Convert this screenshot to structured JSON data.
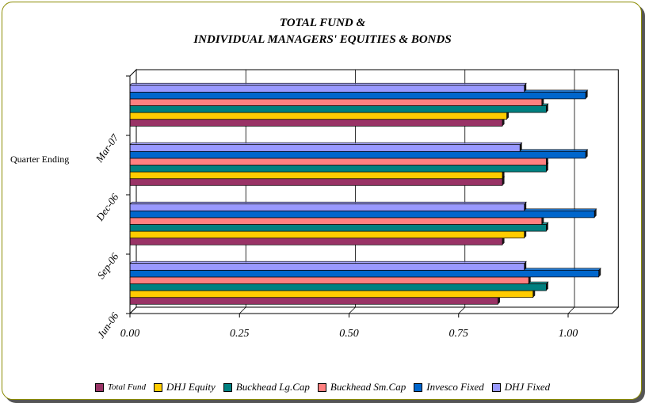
{
  "chart_data": {
    "type": "bar",
    "orientation": "horizontal",
    "title_line1": "TOTAL FUND &",
    "title_line2": "INDIVIDUAL MANAGERS' EQUITIES & BONDS",
    "ylabel": "Quarter Ending",
    "xlabel": "",
    "categories": [
      "Jun-06",
      "Sep-06",
      "Dec-06",
      "Mar-07"
    ],
    "x_ticks": [
      "0.00",
      "0.25",
      "0.50",
      "0.75",
      "1.00"
    ],
    "xlim": [
      0,
      1.1
    ],
    "grid": true,
    "legend_position": "bottom",
    "series": [
      {
        "name": "Total Fund",
        "color": "#993366",
        "values": [
          0.84,
          0.85,
          0.85,
          0.85
        ]
      },
      {
        "name": "DHJ Equity",
        "color": "#ffcc00",
        "values": [
          0.92,
          0.9,
          0.85,
          0.86
        ]
      },
      {
        "name": "Buckhead Lg.Cap",
        "color": "#008080",
        "values": [
          0.95,
          0.95,
          0.95,
          0.95
        ]
      },
      {
        "name": "Buckhead Sm.Cap",
        "color": "#ff8080",
        "values": [
          0.91,
          0.94,
          0.95,
          0.94
        ]
      },
      {
        "name": "Invesco Fixed",
        "color": "#0066cc",
        "values": [
          1.07,
          1.06,
          1.04,
          1.04
        ]
      },
      {
        "name": "DHJ Fixed",
        "color": "#9999ff",
        "values": [
          0.9,
          0.9,
          0.89,
          0.9
        ]
      }
    ]
  }
}
